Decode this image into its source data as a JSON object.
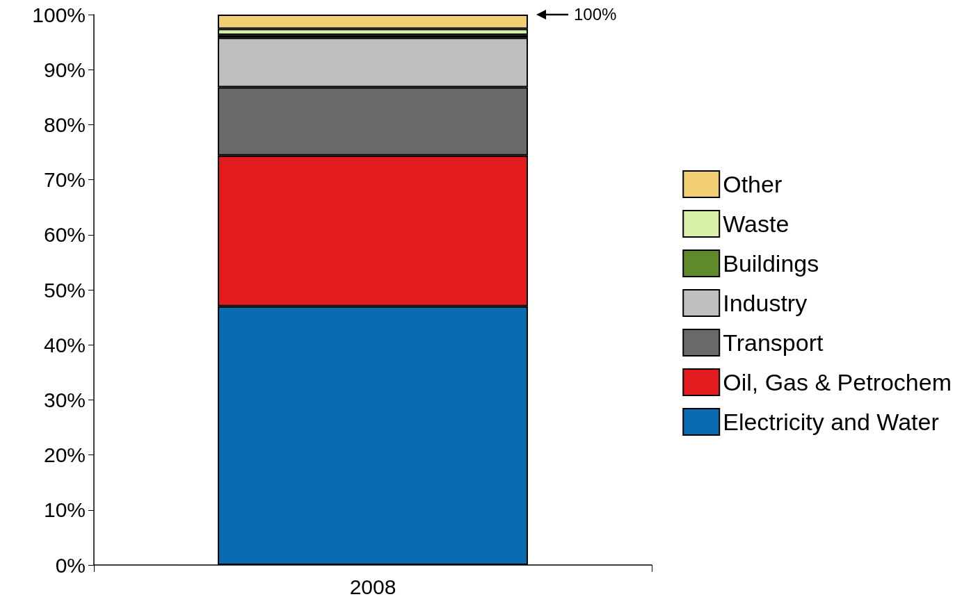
{
  "chart_data": {
    "type": "bar",
    "stacked": true,
    "categories": [
      "2008"
    ],
    "series": [
      {
        "name": "Electricity and Water",
        "color": "#096bb0",
        "values": [
          47
        ]
      },
      {
        "name": "Oil, Gas & Petrochem",
        "color": "#e11b1e",
        "values": [
          27.4
        ]
      },
      {
        "name": "Transport",
        "color": "#696969",
        "values": [
          12.4
        ]
      },
      {
        "name": "Industry",
        "color": "#bfbfbf",
        "values": [
          9.0
        ]
      },
      {
        "name": "Buildings",
        "color": "#5f8a2b",
        "values": [
          0.5
        ]
      },
      {
        "name": "Waste",
        "color": "#d9f0a8",
        "values": [
          1.1
        ]
      },
      {
        "name": "Other",
        "color": "#f2cf75",
        "values": [
          2.6
        ]
      }
    ],
    "ylim": [
      0,
      100
    ],
    "yticks": [
      {
        "value": 0,
        "label": "0%"
      },
      {
        "value": 10,
        "label": "10%"
      },
      {
        "value": 20,
        "label": "20%"
      },
      {
        "value": 30,
        "label": "30%"
      },
      {
        "value": 40,
        "label": "40%"
      },
      {
        "value": 50,
        "label": "50%"
      },
      {
        "value": 60,
        "label": "60%"
      },
      {
        "value": 70,
        "label": "70%"
      },
      {
        "value": 80,
        "label": "80%"
      },
      {
        "value": 90,
        "label": "90%"
      },
      {
        "value": 100,
        "label": "100%"
      }
    ],
    "annotations": [
      "100%"
    ],
    "grid": false,
    "legend": "right"
  }
}
